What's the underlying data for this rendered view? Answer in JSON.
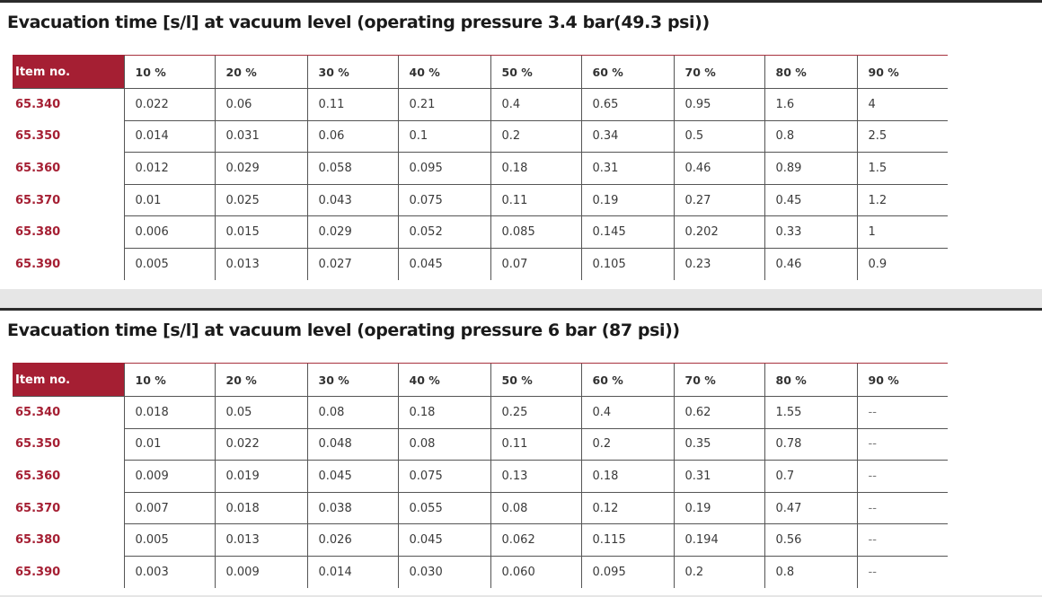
{
  "tables": [
    {
      "title": "Evacuation time [s/l] at vacuum level (operating pressure 3.4 bar(49.3 psi))",
      "headers": [
        "Item no.",
        "10 %",
        "20 %",
        "30 %",
        "40 %",
        "50 %",
        "60 %",
        "70 %",
        "80 %",
        "90 %"
      ],
      "rows": [
        [
          "65.340",
          "0.022",
          "0.06",
          "0.11",
          "0.21",
          "0.4",
          "0.65",
          "0.95",
          "1.6",
          "4"
        ],
        [
          "65.350",
          "0.014",
          "0.031",
          "0.06",
          "0.1",
          "0.2",
          "0.34",
          "0.5",
          "0.8",
          "2.5"
        ],
        [
          "65.360",
          "0.012",
          "0.029",
          "0.058",
          "0.095",
          "0.18",
          "0.31",
          "0.46",
          "0.89",
          "1.5"
        ],
        [
          "65.370",
          "0.01",
          "0.025",
          "0.043",
          "0.075",
          "0.11",
          "0.19",
          "0.27",
          "0.45",
          "1.2"
        ],
        [
          "65.380",
          "0.006",
          "0.015",
          "0.029",
          "0.052",
          "0.085",
          "0.145",
          "0.202",
          "0.33",
          "1"
        ],
        [
          "65.390",
          "0.005",
          "0.013",
          "0.027",
          "0.045",
          "0.07",
          "0.105",
          "0.23",
          "0.46",
          "0.9"
        ]
      ]
    },
    {
      "title": "Evacuation time [s/l] at vacuum level (operating pressure 6 bar (87 psi))",
      "headers": [
        "Item no.",
        "10 %",
        "20 %",
        "30 %",
        "40 %",
        "50 %",
        "60 %",
        "70 %",
        "80 %",
        "90 %"
      ],
      "rows": [
        [
          "65.340",
          "0.018",
          "0.05",
          "0.08",
          "0.18",
          "0.25",
          "0.4",
          "0.62",
          "1.55",
          "--"
        ],
        [
          "65.350",
          "0.01",
          "0.022",
          "0.048",
          "0.08",
          "0.11",
          "0.2",
          "0.35",
          "0.78",
          "--"
        ],
        [
          "65.360",
          "0.009",
          "0.019",
          "0.045",
          "0.075",
          "0.13",
          "0.18",
          "0.31",
          "0.7",
          "--"
        ],
        [
          "65.370",
          "0.007",
          "0.018",
          "0.038",
          "0.055",
          "0.08",
          "0.12",
          "0.19",
          "0.47",
          "--"
        ],
        [
          "65.380",
          "0.005",
          "0.013",
          "0.026",
          "0.045",
          "0.062",
          "0.115",
          "0.194",
          "0.56",
          "--"
        ],
        [
          "65.390",
          "0.003",
          "0.009",
          "0.014",
          "0.030",
          "0.060",
          "0.095",
          "0.2",
          "0.8",
          "--"
        ]
      ]
    }
  ],
  "colors": {
    "accent": "#a51f33",
    "rule": "#2b2b2b",
    "band": "#e6e6e6"
  }
}
